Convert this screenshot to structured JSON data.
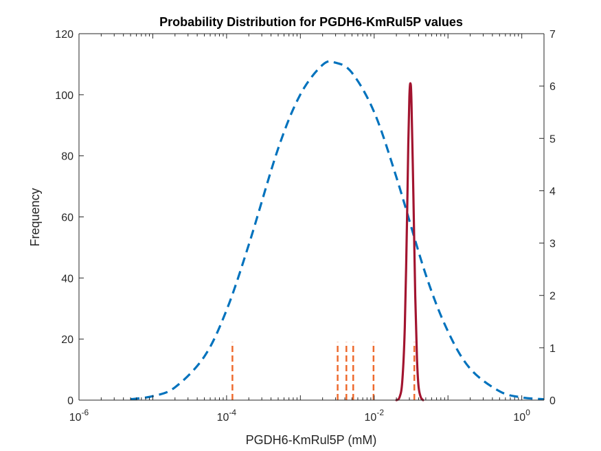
{
  "chart_data": {
    "type": "line",
    "title": "Probability Distribution for PGDH6-KmRul5P values",
    "xlabel": "PGDH6-KmRul5P (mM)",
    "ylabel": "Frequency",
    "xscale": "log",
    "xlim": [
      1e-06,
      2
    ],
    "ylim_left": [
      0,
      120
    ],
    "ylim_right": [
      0,
      7
    ],
    "grid": false,
    "x_ticks": [
      {
        "base": "10",
        "exp": "-6"
      },
      {
        "base": "10",
        "exp": "-4"
      },
      {
        "base": "10",
        "exp": "-2"
      },
      {
        "base": "10",
        "exp": "0"
      }
    ],
    "y_left_ticks": [
      "0",
      "20",
      "40",
      "60",
      "80",
      "100",
      "120"
    ],
    "y_right_ticks": [
      "0",
      "1",
      "2",
      "3",
      "4",
      "5",
      "6",
      "7"
    ],
    "series": [
      {
        "style": "dashed",
        "color": "#0072BD",
        "axis": "left",
        "x": [
          5e-06,
          1e-05,
          2e-05,
          5e-05,
          0.0001,
          0.0002,
          0.0005,
          0.001,
          0.002,
          0.003,
          0.005,
          0.01,
          0.02,
          0.05,
          0.1,
          0.2,
          0.5,
          1,
          2
        ],
        "y": [
          0.3,
          1.3,
          4.2,
          14.3,
          29.5,
          50.9,
          82.4,
          100.1,
          109.8,
          110.5,
          107.2,
          94.3,
          73.0,
          41.1,
          22.5,
          10.3,
          2.9,
          0.9,
          0.3
        ]
      },
      {
        "style": "solid",
        "color": "#A2142F",
        "axis": "right",
        "x": [
          0.02,
          0.022,
          0.024,
          0.026,
          0.028,
          0.029,
          0.03,
          0.031,
          0.032,
          0.034,
          0.036,
          0.038,
          0.04,
          0.043,
          0.046
        ],
        "y": [
          0.0,
          0.05,
          0.35,
          1.4,
          3.6,
          4.9,
          5.8,
          6.05,
          5.7,
          3.9,
          2.0,
          0.8,
          0.25,
          0.05,
          0.0
        ]
      }
    ],
    "markers": {
      "style": "dashed",
      "color": "#EE6A2E",
      "axis": "left",
      "x": [
        0.00012,
        0.0032,
        0.0042,
        0.0052,
        0.0098,
        0.035
      ],
      "y": [
        19,
        19,
        19,
        19,
        19,
        19
      ]
    }
  }
}
